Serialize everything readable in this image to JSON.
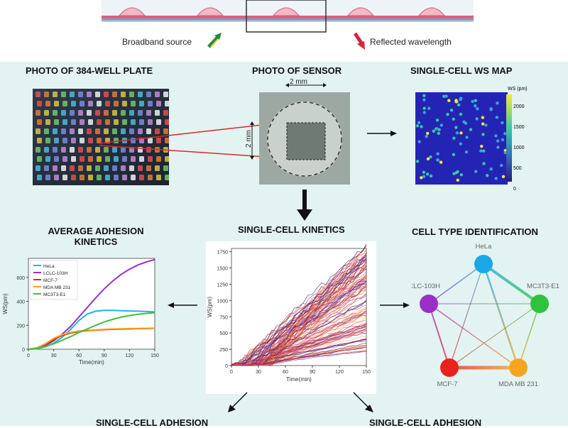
{
  "top": {
    "broadband_label": "Broadband source",
    "reflected_label": "Reflected wavelength"
  },
  "sections": {
    "plate_title": "PHOTO OF 384-WELL PLATE",
    "sensor_title": "PHOTO OF SENSOR",
    "ws_map_title": "SINGLE-CELL WS MAP",
    "avg_title_line1": "AVERAGE ADHESION",
    "avg_title_line2": "KINETICS",
    "kinetics_title": "SINGLE-CELL KINETICS",
    "identification_title": "CELL TYPE IDENTIFICATION",
    "bottom_left_title": "SINGLE-CELL ADHESION",
    "bottom_right_title": "SINGLE-CELL ADHESION"
  },
  "sensor": {
    "width_label": "2 mm",
    "height_label": "2 mm"
  },
  "ws_map": {
    "colorbar_title": "WS (pm)",
    "colorbar_ticks": [
      "2000",
      "1500",
      "1000",
      "500",
      "0"
    ],
    "colors": {
      "low": "#2a2ab8",
      "mid": "#36c9a0",
      "high": "#f6e83a"
    }
  },
  "chart_data": [
    {
      "type": "line",
      "xlabel": "Time(min)",
      "ylabel": "WS(pm)",
      "x": [
        0,
        30,
        60,
        90,
        120,
        150
      ],
      "xlim": [
        0,
        150
      ],
      "ylim": [
        0,
        760
      ],
      "yticks": [
        0,
        200,
        400,
        600
      ],
      "legend_position": "top-left",
      "series": [
        {
          "name": "HeLa",
          "color": "#1fb4e8",
          "x": [
            0,
            10,
            20,
            30,
            40,
            50,
            60,
            70,
            80,
            90,
            100,
            110,
            120,
            130,
            140,
            150
          ],
          "values": [
            0,
            5,
            20,
            50,
            100,
            165,
            240,
            295,
            318,
            325,
            325,
            322,
            320,
            318,
            315,
            312
          ]
        },
        {
          "name": "LCLC-103H",
          "color": "#9b2fc4",
          "x": [
            0,
            10,
            20,
            30,
            40,
            50,
            60,
            70,
            80,
            90,
            100,
            110,
            120,
            130,
            140,
            150
          ],
          "values": [
            0,
            8,
            30,
            70,
            125,
            190,
            270,
            350,
            430,
            505,
            570,
            625,
            670,
            705,
            730,
            750
          ]
        },
        {
          "name": "MCF-7",
          "color": "#e8231e",
          "x": [
            0,
            10,
            20,
            30,
            40,
            50,
            60,
            70,
            80,
            90,
            100,
            110,
            120,
            130,
            140,
            150
          ],
          "values": [
            0,
            10,
            40,
            80,
            115,
            135,
            148,
            155,
            160,
            163,
            166,
            168,
            170,
            172,
            173,
            175
          ]
        },
        {
          "name": "MDA MB 231",
          "color": "#f3a21b",
          "x": [
            0,
            10,
            20,
            30,
            40,
            50,
            60,
            70,
            80,
            90,
            100,
            110,
            120,
            130,
            140,
            150
          ],
          "values": [
            0,
            12,
            45,
            90,
            122,
            140,
            152,
            158,
            162,
            166,
            169,
            171,
            173,
            174,
            175,
            176
          ]
        },
        {
          "name": "MC3T3-E1",
          "color": "#3fbf3f",
          "x": [
            0,
            10,
            20,
            30,
            40,
            50,
            60,
            70,
            80,
            90,
            100,
            110,
            120,
            130,
            140,
            150
          ],
          "values": [
            0,
            6,
            22,
            45,
            75,
            105,
            140,
            170,
            200,
            228,
            250,
            268,
            282,
            292,
            300,
            305
          ]
        }
      ]
    },
    {
      "type": "line",
      "xlabel": "Time(min)",
      "ylabel": "WS(pm)",
      "x": [
        0,
        30,
        60,
        90,
        120,
        150
      ],
      "xlim": [
        0,
        150
      ],
      "ylim": [
        0,
        1800
      ],
      "yticks": [
        0,
        250,
        500,
        750,
        1000,
        1250,
        1500,
        1750
      ],
      "series_note": "many overlaid single-cell traces",
      "colors": [
        "#2b0f54",
        "#5d1f7a",
        "#8b2a83",
        "#b8336a",
        "#dd4c51",
        "#f06a3e",
        "#f59a4a"
      ],
      "trace_count": 120,
      "final_value_range": [
        150,
        1850
      ]
    }
  ],
  "network": {
    "nodes": [
      {
        "name": "HeLa",
        "color": "#1aa9e6"
      },
      {
        "name": "MC3T3-E1",
        "color": "#2fc23a"
      },
      {
        "name": "MDA MB 231",
        "color": "#f7a51e"
      },
      {
        "name": "MCF-7",
        "color": "#e8231e"
      },
      {
        "name": "LCLC-103H",
        "color": "#9b30c7"
      }
    ]
  }
}
